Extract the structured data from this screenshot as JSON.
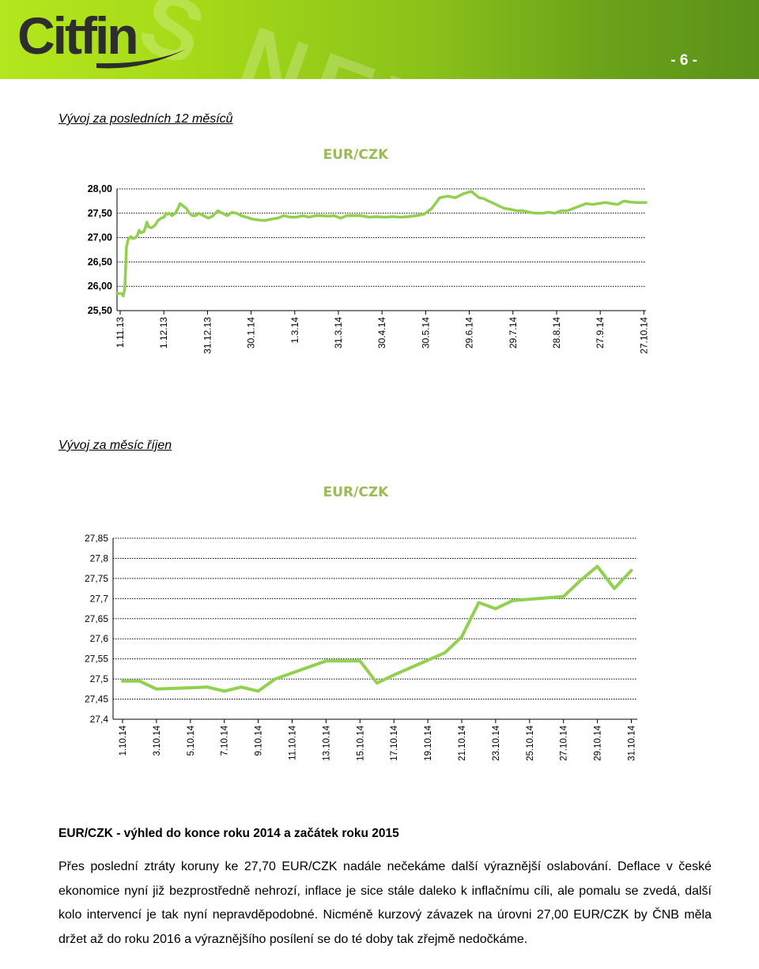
{
  "header": {
    "logo_text": "Citfin",
    "decor_text": "S NEWS",
    "page_number": "- 6 -"
  },
  "section1": {
    "title": "Vývoj za posledních 12 měsíců"
  },
  "section2": {
    "title": "Vývoj za měsíc říjen"
  },
  "colors": {
    "line": "#92d050",
    "title": "#9bbb59",
    "brand": "#a6da18"
  },
  "chart_data": [
    {
      "type": "line",
      "title": "EUR/CZK",
      "ylim": [
        25.5,
        28.0
      ],
      "yticks": [
        "28,00",
        "27,50",
        "27,00",
        "26,50",
        "26,00",
        "25,50"
      ],
      "ytick_values": [
        28.0,
        27.5,
        27.0,
        26.5,
        26.0,
        25.5
      ],
      "xtick_labels": [
        "1.11.13",
        "1.12.13",
        "31.12.13",
        "30.1.14",
        "1.3.14",
        "31.3.14",
        "30.4.14",
        "30.5.14",
        "29.6.14",
        "29.7.14",
        "28.8.14",
        "27.9.14",
        "27.10.14"
      ],
      "grid": true,
      "series": [
        {
          "x": [
            0,
            3,
            4,
            5,
            6,
            7,
            8,
            9,
            10,
            12,
            13,
            14,
            15,
            17,
            18,
            19,
            20,
            22,
            24,
            26,
            28,
            30,
            31,
            32,
            33,
            35,
            37,
            39,
            40,
            42,
            44,
            46,
            48,
            50,
            52,
            55,
            58,
            61,
            64,
            67,
            70,
            73,
            76,
            79,
            82,
            86,
            90,
            94,
            98,
            102,
            106,
            110,
            114,
            118,
            122,
            126,
            130,
            134,
            138,
            142,
            146,
            150,
            155,
            160,
            165,
            170,
            175,
            180,
            185,
            190,
            195,
            200,
            205,
            210,
            215,
            220,
            225,
            230,
            233,
            236,
            238,
            242,
            246,
            250,
            254,
            258,
            262,
            266,
            270,
            274,
            278,
            282,
            286,
            290,
            294,
            298,
            302,
            306,
            310,
            314,
            318,
            322,
            326,
            330,
            333,
            336
          ],
          "y": [
            25.85,
            25.85,
            25.8,
            25.98,
            26.8,
            26.95,
            27.0,
            27.02,
            26.98,
            27.0,
            27.05,
            27.15,
            27.1,
            27.12,
            27.2,
            27.32,
            27.22,
            27.2,
            27.25,
            27.35,
            27.4,
            27.42,
            27.5,
            27.48,
            27.5,
            27.45,
            27.5,
            27.62,
            27.7,
            27.65,
            27.6,
            27.5,
            27.45,
            27.45,
            27.5,
            27.45,
            27.4,
            27.45,
            27.55,
            27.5,
            27.45,
            27.52,
            27.5,
            27.45,
            27.42,
            27.38,
            27.36,
            27.35,
            27.38,
            27.4,
            27.45,
            27.42,
            27.42,
            27.45,
            27.42,
            27.45,
            27.45,
            27.44,
            27.45,
            27.4,
            27.45,
            27.45,
            27.45,
            27.42,
            27.43,
            27.42,
            27.43,
            27.42,
            27.43,
            27.45,
            27.48,
            27.6,
            27.82,
            27.85,
            27.82,
            27.9,
            27.95,
            27.82,
            27.8,
            27.75,
            27.72,
            27.66,
            27.6,
            27.58,
            27.55,
            27.55,
            27.52,
            27.5,
            27.5,
            27.52,
            27.5,
            27.55,
            27.55,
            27.6,
            27.65,
            27.7,
            27.68,
            27.7,
            27.72,
            27.7,
            27.68,
            27.75,
            27.73,
            27.72,
            27.72,
            27.72
          ]
        }
      ]
    },
    {
      "type": "line",
      "title": "EUR/CZK",
      "ylim": [
        27.4,
        27.85
      ],
      "yticks": [
        "27,85",
        "27,8",
        "27,75",
        "27,7",
        "27,65",
        "27,6",
        "27,55",
        "27,5",
        "27,45",
        "27,4"
      ],
      "ytick_values": [
        27.85,
        27.8,
        27.75,
        27.7,
        27.65,
        27.6,
        27.55,
        27.5,
        27.45,
        27.4
      ],
      "xtick_labels": [
        "1.10.14",
        "3.10.14",
        "5.10.14",
        "7.10.14",
        "9.10.14",
        "11.10.14",
        "13.10.14",
        "15.10.14",
        "17.10.14",
        "19.10.14",
        "21.10.14",
        "23.10.14",
        "25.10.14",
        "27.10.14",
        "29.10.14",
        "31.10.14"
      ],
      "grid": true,
      "series": [
        {
          "x": [
            1,
            2,
            3,
            6,
            7,
            8,
            9,
            10,
            13,
            14,
            15,
            16,
            17,
            20,
            21,
            22,
            23,
            24,
            27,
            28,
            29,
            30,
            31
          ],
          "y": [
            27.495,
            27.495,
            27.475,
            27.48,
            27.47,
            27.48,
            27.47,
            27.5,
            27.545,
            27.545,
            27.545,
            27.49,
            27.51,
            27.565,
            27.605,
            27.69,
            27.675,
            27.695,
            27.705,
            27.745,
            27.78,
            27.725,
            27.77
          ]
        }
      ]
    }
  ],
  "outlook": {
    "heading": "EUR/CZK - výhled do konce roku 2014 a začátek roku 2015",
    "p1": "Přes poslední ztráty koruny ke 27,70 EUR/CZK nadále nečekáme další výraznější oslabování. Deflace v české ekonomice nyní již bezprostředně nehrozí, inflace je sice stále daleko k inflačnímu cíli, ale pomalu se zvedá, další kolo intervencí je tak nyní nepravděpodobné. Nicméně kurzový závazek na úrovni 27,00 EUR/CZK by ČNB měla držet až do roku 2016 a výraznějšího posílení se do té doby tak zřejmě nedočkáme."
  }
}
